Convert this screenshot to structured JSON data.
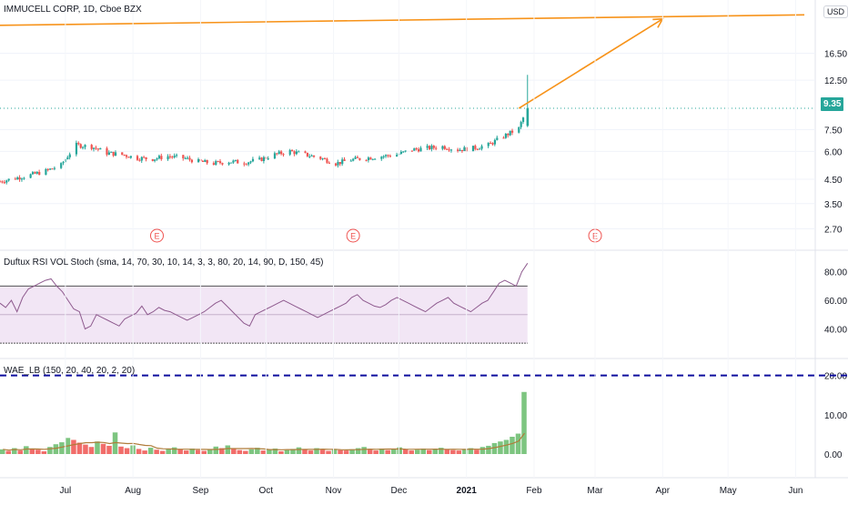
{
  "header": {
    "symbol_title": "IMMUCELL CORP, 1D, Cboe BZX",
    "currency": "USD"
  },
  "price_tag": "9.35",
  "earnings_marker": "E",
  "colors": {
    "up": "#26a69a",
    "down": "#ef5350",
    "trendline": "#f7931a",
    "rsi_line": "#8e5a8e",
    "rsi_band": "#f2e6f5",
    "wae_dashed": "#0d0d9e",
    "wae_up": "#66bb6a",
    "wae_down": "#ef5350",
    "wae_signal": "#b07c3a"
  },
  "chart_data": [
    {
      "type": "candlestick",
      "title": "IMMUCELL CORP, 1D, Cboe BZX",
      "y_ticks": [
        "16.50",
        "12.50",
        "9.35",
        "7.50",
        "6.00",
        "4.50",
        "3.50",
        "2.70"
      ],
      "y_scale": "log",
      "last_price": 9.35,
      "x_ticks": [
        "Jul",
        "Aug",
        "Sep",
        "Oct",
        "Nov",
        "Dec",
        "2021",
        "Feb",
        "Mar",
        "Apr",
        "May",
        "Jun"
      ],
      "close_path": [
        [
          "2020-06-01",
          4.4
        ],
        [
          "2020-06-08",
          4.55
        ],
        [
          "2020-06-15",
          4.7
        ],
        [
          "2020-06-22",
          4.9
        ],
        [
          "2020-06-29",
          5.2
        ],
        [
          "2020-07-06",
          6.4
        ],
        [
          "2020-07-13",
          6.3
        ],
        [
          "2020-07-20",
          5.9
        ],
        [
          "2020-07-27",
          5.8
        ],
        [
          "2020-08-03",
          5.6
        ],
        [
          "2020-08-10",
          5.55
        ],
        [
          "2020-08-17",
          5.7
        ],
        [
          "2020-08-24",
          5.6
        ],
        [
          "2020-08-31",
          5.4
        ],
        [
          "2020-09-07",
          5.3
        ],
        [
          "2020-09-14",
          5.4
        ],
        [
          "2020-09-21",
          5.35
        ],
        [
          "2020-09-28",
          5.5
        ],
        [
          "2020-10-05",
          5.8
        ],
        [
          "2020-10-12",
          6.0
        ],
        [
          "2020-10-19",
          5.8
        ],
        [
          "2020-10-26",
          5.6
        ],
        [
          "2020-11-02",
          5.3
        ],
        [
          "2020-11-09",
          5.5
        ],
        [
          "2020-11-16",
          5.6
        ],
        [
          "2020-11-23",
          5.7
        ],
        [
          "2020-11-30",
          5.8
        ],
        [
          "2020-12-07",
          6.1
        ],
        [
          "2020-12-14",
          6.2
        ],
        [
          "2020-12-21",
          6.3
        ],
        [
          "2020-12-28",
          6.1
        ],
        [
          "2021-01-04",
          6.2
        ],
        [
          "2021-01-11",
          6.4
        ],
        [
          "2021-01-18",
          7.0
        ],
        [
          "2021-01-25",
          7.6
        ],
        [
          "2021-01-29",
          9.35
        ]
      ],
      "last_day": {
        "open": 7.8,
        "high": 13.2,
        "low": 7.7,
        "close": 9.35
      },
      "earnings_dates": [
        "2020-08-12",
        "2020-11-10",
        "2021-03-01"
      ],
      "annotations": [
        {
          "type": "trend_line",
          "from": [
            "2020-06-01",
            22.0
          ],
          "to": [
            "2021-06-05",
            24.5
          ]
        },
        {
          "type": "arrow_line",
          "from": [
            "2021-01-25",
            9.35
          ],
          "to": [
            "2021-04-01",
            23.5
          ]
        },
        {
          "type": "horizontal_line",
          "value": 9.35,
          "style": "dotted"
        }
      ]
    },
    {
      "type": "line",
      "title": "Duftux RSI VOL Stoch (sma, 14, 70, 30, 10, 14, 3, 3, 80, 20, 14, 90, D, 150, 45)",
      "y_ticks": [
        "80.00",
        "60.00",
        "40.00"
      ],
      "band": {
        "upper": 70,
        "lower": 30,
        "mid": 50
      },
      "series": [
        {
          "values": [
            58,
            55,
            60,
            52,
            62,
            68,
            70,
            72,
            74,
            75,
            70,
            66,
            60,
            54,
            52,
            40,
            42,
            50,
            48,
            46,
            44,
            42,
            47,
            49,
            51,
            56,
            50,
            52,
            55,
            53,
            52,
            50,
            48,
            46,
            48,
            50,
            52,
            55,
            58,
            60,
            56,
            52,
            48,
            44,
            42,
            50,
            52,
            54,
            56,
            58,
            60,
            58,
            56,
            54,
            52,
            50,
            48,
            50,
            52,
            54,
            56,
            58,
            62,
            64,
            60,
            58,
            56,
            55,
            57,
            60,
            62,
            60,
            58,
            56,
            54,
            52,
            55,
            58,
            60,
            62,
            58,
            56,
            54,
            52,
            55,
            58,
            60,
            66,
            72,
            74,
            72,
            70,
            80,
            86
          ]
        }
      ]
    },
    {
      "type": "bar",
      "title": "WAE_LB (150, 20, 40, 20, 2, 20)",
      "y_ticks": [
        "20.00",
        "10.00",
        "0.00"
      ],
      "reference_line": 20.0,
      "series": [
        {
          "name": "",
          "values": [
            1.2,
            0.8,
            1.5,
            0.9,
            2.0,
            1.4,
            1.1,
            0.7,
            1.8,
            2.5,
            3.0,
            4.1,
            3.6,
            2.9,
            2.4,
            1.8,
            3.2,
            2.6,
            2.1,
            5.5,
            1.9,
            1.5,
            2.2,
            1.3,
            0.9,
            1.6,
            1.1,
            0.8,
            1.3,
            1.7,
            1.2,
            0.9,
            1.4,
            1.0,
            0.8,
            1.1,
            1.9,
            1.5,
            2.2,
            1.3,
            1.0,
            0.8,
            1.2,
            1.6,
            0.9,
            1.1,
            1.4,
            0.7,
            1.0,
            1.3,
            1.7,
            1.2,
            0.9,
            1.5,
            1.1,
            0.8,
            1.3,
            1.0,
            0.9,
            1.2,
            1.5,
            1.8,
            1.1,
            0.9,
            1.4,
            1.0,
            1.2,
            1.7,
            1.3,
            0.9,
            1.1,
            1.4,
            1.0,
            1.3,
            1.6,
            1.2,
            1.0,
            0.9,
            1.3,
            1.5,
            1.1,
            1.8,
            2.1,
            2.8,
            3.2,
            3.6,
            4.4,
            5.2,
            15.8
          ]
        }
      ]
    }
  ]
}
